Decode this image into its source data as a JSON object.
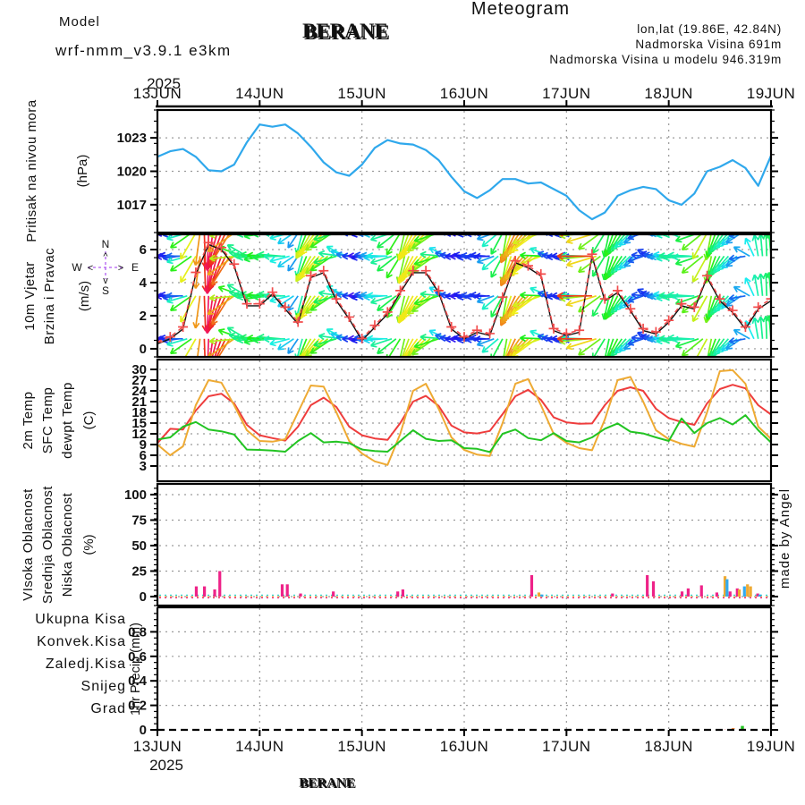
{
  "header": {
    "meteogram_title": "Meteogram",
    "model_label": "Model",
    "model_name": "wrf-nmm_v3.9.1 e3km",
    "station": "BERANE",
    "lonlat": "lon,lat (19.86E, 42.84N)",
    "elevation": "Nadmorska Visina 691m",
    "model_elevation": "Nadmorska Visina u modelu 946.319m",
    "colors": {
      "meteogram_title": "#f2c472",
      "model_label": "#cf8ef2",
      "model_name": "#b35ce8",
      "info": "#b05cf0",
      "station": "#141414"
    }
  },
  "axis": {
    "year": "2025",
    "days": [
      "13JUN",
      "14JUN",
      "15JUN",
      "16JUN",
      "17JUN",
      "18JUN",
      "19JUN"
    ],
    "bottom_station": "BERANE"
  },
  "watermark": "made by Angel",
  "watermark_color": "#c6e2c6",
  "panels": {
    "pressure": {
      "label": "Pritisak na nivou mora",
      "label_color": "#33aaee",
      "unit": "(hPa)",
      "ticks": [
        1017,
        1020,
        1023
      ]
    },
    "wind": {
      "label1": "10m Vjetar",
      "label2": "Brzina i Pravac",
      "label_color": "#20c020",
      "unit": "(m/s)",
      "ticks": [
        0,
        2,
        4,
        6
      ],
      "compass": {
        "n": "N",
        "s": "S",
        "e": "E",
        "w": "W",
        "up": "^",
        "down": "v",
        "left": "<",
        "right": ">",
        "color": "#b05cf0"
      }
    },
    "temp": {
      "unit": "(C)",
      "ticks": [
        3,
        6,
        9,
        12,
        15,
        18,
        21,
        24,
        27,
        30
      ],
      "series_labels": [
        {
          "label": "2m Temp",
          "color": "#ee3c3c"
        },
        {
          "label": "SFC Temp",
          "color": "#eeaa33"
        },
        {
          "label": "dewpt Temp",
          "color": "#22c422"
        }
      ]
    },
    "cloud": {
      "unit": "(%)",
      "ticks": [
        0,
        25,
        50,
        75,
        100
      ],
      "series_labels": [
        {
          "label": "VIsoka Oblacnost",
          "color": "#33aaee"
        },
        {
          "label": "Srednja Oblacnost",
          "color": "#eeaa33"
        },
        {
          "label": "Niska Oblacnost",
          "color": "#ee2288"
        }
      ]
    },
    "precip": {
      "unit": "1hr Precip (mm)",
      "ticks": [
        0,
        0.2,
        0.4,
        0.6,
        0.8
      ],
      "series_labels": [
        {
          "label": "Ukupna Kisa",
          "color": "#22c422"
        },
        {
          "label": "Konvek.Kisa",
          "color": "#ee3c3c"
        },
        {
          "label": "Zaledj.Kisa",
          "color": "#ff8833"
        },
        {
          "label": "Snijeg",
          "color": "#5050e8"
        },
        {
          "label": "Grad",
          "color": "#30d8d8"
        }
      ]
    }
  },
  "chart_data": [
    {
      "type": "line",
      "name": "sea-level-pressure",
      "ylabel": "hPa",
      "x_start_days": 0,
      "x_step_days": 0.125,
      "x_axis": "days since 13JUN2025",
      "ylim": [
        1014.5,
        1025.5
      ],
      "color": "#2fa8ec",
      "values": [
        1021.3,
        1021.8,
        1022.0,
        1021.3,
        1020.1,
        1020.0,
        1020.6,
        1022.6,
        1024.2,
        1024.0,
        1024.2,
        1023.4,
        1022.2,
        1020.8,
        1019.9,
        1019.6,
        1020.6,
        1022.1,
        1022.8,
        1022.5,
        1022.4,
        1021.9,
        1021.0,
        1019.5,
        1018.2,
        1017.6,
        1018.3,
        1019.3,
        1019.3,
        1018.9,
        1019.0,
        1018.4,
        1017.8,
        1016.5,
        1015.7,
        1016.3,
        1017.8,
        1018.3,
        1018.6,
        1018.4,
        1017.4,
        1017.0,
        1018.0,
        1020.0,
        1020.4,
        1021.0,
        1020.3,
        1018.7,
        1021.4
      ]
    },
    {
      "type": "wind",
      "name": "wind-speed-direction",
      "ylabel": "m/s",
      "x_step_days": 0.125,
      "ylim": [
        -0.49,
        6.92
      ],
      "arrow_rows": [
        7.0,
        5.6,
        3.2,
        0.6
      ],
      "speed_color": "#111111",
      "gust_color": "#f24c4c",
      "speed": [
        0.3,
        0.6,
        1.2,
        4.5,
        6.3,
        6.0,
        5.0,
        2.6,
        2.6,
        3.3,
        2.4,
        1.5,
        4.3,
        4.6,
        2.9,
        1.8,
        0.5,
        1.3,
        2.1,
        3.4,
        4.6,
        4.6,
        3.4,
        1.2,
        0.6,
        1.0,
        0.8,
        3.0,
        5.2,
        4.9,
        4.4,
        1.1,
        0.8,
        1.0,
        5.6,
        2.9,
        3.4,
        2.3,
        1.1,
        0.9,
        1.6,
        2.6,
        2.4,
        4.3,
        2.9,
        2.2,
        1.2,
        2.4,
        2.9
      ],
      "dir_step_hours": 1,
      "dir_deg": [
        178,
        186,
        172,
        182,
        176,
        188,
        180,
        196,
        215,
        240,
        262,
        272,
        268,
        262,
        255,
        250,
        244,
        238,
        215,
        185,
        160,
        150,
        170,
        178,
        184,
        176,
        188,
        178,
        183,
        175,
        181,
        195,
        214,
        236,
        255,
        248,
        240,
        233,
        227,
        222,
        218,
        214,
        196,
        172,
        152,
        165,
        174,
        180,
        179,
        187,
        175,
        183,
        177,
        185,
        179,
        198,
        218,
        238,
        257,
        250,
        242,
        235,
        228,
        223,
        219,
        215,
        198,
        175,
        155,
        168,
        176,
        182,
        181,
        174,
        186,
        178,
        184,
        176,
        182,
        200,
        220,
        242,
        260,
        252,
        244,
        236,
        230,
        224,
        220,
        216,
        200,
        178,
        158,
        170,
        177,
        183,
        180,
        188,
        176,
        184,
        178,
        186,
        180,
        197,
        216,
        239,
        258,
        251,
        243,
        236,
        229,
        223,
        219,
        215,
        199,
        176,
        156,
        169,
        175,
        181,
        183,
        175,
        187,
        179,
        185,
        177,
        183,
        199,
        219,
        241,
        259,
        250,
        242,
        234,
        228,
        222,
        218,
        214,
        190,
        150,
        115,
        100,
        95,
        92,
        95
      ]
    },
    {
      "type": "line",
      "name": "temperature",
      "ylabel": "C",
      "x_step_days": 0.125,
      "ylim": [
        -1.25,
        32.75
      ],
      "series": [
        {
          "name": "2m Temp",
          "color": "#ee3c3c",
          "values": [
            9.4,
            13.4,
            13.2,
            18.5,
            22.5,
            23.2,
            20.5,
            14.5,
            11.6,
            10.8,
            10.1,
            14.0,
            20.0,
            22.1,
            19.5,
            14.0,
            11.6,
            10.7,
            10.3,
            15.0,
            21.0,
            22.6,
            19.8,
            14.3,
            12.4,
            12.1,
            12.8,
            17.5,
            22.5,
            24.3,
            21.5,
            16.6,
            15.2,
            14.8,
            14.9,
            20.0,
            24.0,
            25.0,
            24.0,
            19.0,
            16.4,
            15.3,
            14.5,
            20.5,
            24.5,
            25.7,
            24.7,
            20.0,
            17.4
          ]
        },
        {
          "name": "SFC Temp",
          "color": "#eeaa33",
          "values": [
            9.0,
            6.0,
            8.5,
            20.0,
            27.0,
            26.3,
            20.0,
            13.0,
            10.0,
            9.8,
            10.5,
            18.0,
            25.5,
            25.2,
            18.0,
            10.0,
            6.5,
            4.3,
            3.3,
            12.0,
            24.0,
            26.0,
            19.0,
            11.0,
            7.5,
            6.2,
            5.8,
            15.0,
            26.0,
            27.3,
            20.0,
            12.0,
            9.5,
            8.0,
            7.4,
            16.0,
            27.0,
            27.9,
            21.0,
            13.0,
            10.5,
            9.2,
            8.4,
            18.0,
            29.5,
            29.8,
            26.0,
            14.0,
            10.6
          ]
        },
        {
          "name": "dewpt Temp",
          "color": "#22c422",
          "values": [
            10.4,
            11.0,
            14.0,
            15.3,
            13.2,
            12.7,
            11.8,
            7.6,
            7.5,
            7.3,
            7.0,
            10.0,
            12.2,
            9.6,
            9.8,
            9.4,
            7.6,
            7.2,
            7.0,
            10.0,
            13.0,
            10.6,
            10.0,
            10.2,
            8.0,
            7.8,
            6.9,
            12.0,
            13.2,
            10.8,
            10.2,
            12.2,
            10.0,
            9.6,
            11.0,
            13.4,
            14.9,
            12.6,
            12.1,
            11.0,
            10.0,
            16.3,
            12.2,
            15.0,
            16.4,
            14.6,
            17.2,
            13.0,
            9.6
          ]
        }
      ]
    },
    {
      "type": "bar",
      "name": "cloud-cover",
      "ylabel": "%",
      "ylim": [
        -8.8,
        110.5
      ],
      "colors": {
        "low": "#ee2288",
        "mid": "#eeaa33",
        "high": "#33aaee"
      },
      "bars": [
        {
          "t": 0.38,
          "h": 10,
          "c": "low"
        },
        {
          "t": 0.46,
          "h": 10,
          "c": "low"
        },
        {
          "t": 0.56,
          "h": 7,
          "c": "low"
        },
        {
          "t": 0.61,
          "h": 25,
          "c": "low"
        },
        {
          "t": 1.22,
          "h": 12,
          "c": "low"
        },
        {
          "t": 1.27,
          "h": 12,
          "c": "low"
        },
        {
          "t": 1.4,
          "h": 3,
          "c": "low"
        },
        {
          "t": 1.72,
          "h": 5,
          "c": "low"
        },
        {
          "t": 2.35,
          "h": 5,
          "c": "low"
        },
        {
          "t": 2.4,
          "h": 7,
          "c": "low"
        },
        {
          "t": 3.66,
          "h": 21,
          "c": "low"
        },
        {
          "t": 3.73,
          "h": 4,
          "c": "mid"
        },
        {
          "t": 3.76,
          "h": 2,
          "c": "high"
        },
        {
          "t": 4.45,
          "h": 3,
          "c": "low"
        },
        {
          "t": 4.79,
          "h": 21,
          "c": "low"
        },
        {
          "t": 4.85,
          "h": 15,
          "c": "low"
        },
        {
          "t": 5.13,
          "h": 5,
          "c": "low"
        },
        {
          "t": 5.19,
          "h": 8,
          "c": "low"
        },
        {
          "t": 5.32,
          "h": 11,
          "c": "low"
        },
        {
          "t": 5.47,
          "h": 4,
          "c": "low"
        },
        {
          "t": 5.55,
          "h": 20,
          "c": "mid"
        },
        {
          "t": 5.57,
          "h": 17,
          "c": "high"
        },
        {
          "t": 5.6,
          "h": 5,
          "c": "low"
        },
        {
          "t": 5.67,
          "h": 8,
          "c": "low"
        },
        {
          "t": 5.69,
          "h": 7,
          "c": "mid"
        },
        {
          "t": 5.74,
          "h": 10,
          "c": "high"
        },
        {
          "t": 5.77,
          "h": 12,
          "c": "mid"
        },
        {
          "t": 5.8,
          "h": 10,
          "c": "mid"
        },
        {
          "t": 5.87,
          "h": 3,
          "c": "low"
        },
        {
          "t": 5.89,
          "h": 2,
          "c": "high"
        }
      ]
    },
    {
      "type": "bar",
      "name": "hourly-precipitation",
      "ylabel": "mm",
      "ylim": [
        0,
        1.0
      ],
      "colors": {
        "ukupna": "#22c422",
        "konvek": "#ee3c3c",
        "zaledj": "#ff8833",
        "snijeg": "#5050e8",
        "grad": "#30d8d8"
      },
      "bars": [
        {
          "t": 5.55,
          "h": 0.006,
          "c": "konvek"
        },
        {
          "t": 5.63,
          "h": 0.014,
          "c": "zaledj"
        },
        {
          "t": 5.72,
          "h": 0.032,
          "c": "ukupna"
        },
        {
          "t": 5.74,
          "h": 0.008,
          "c": "konvek"
        }
      ]
    }
  ]
}
